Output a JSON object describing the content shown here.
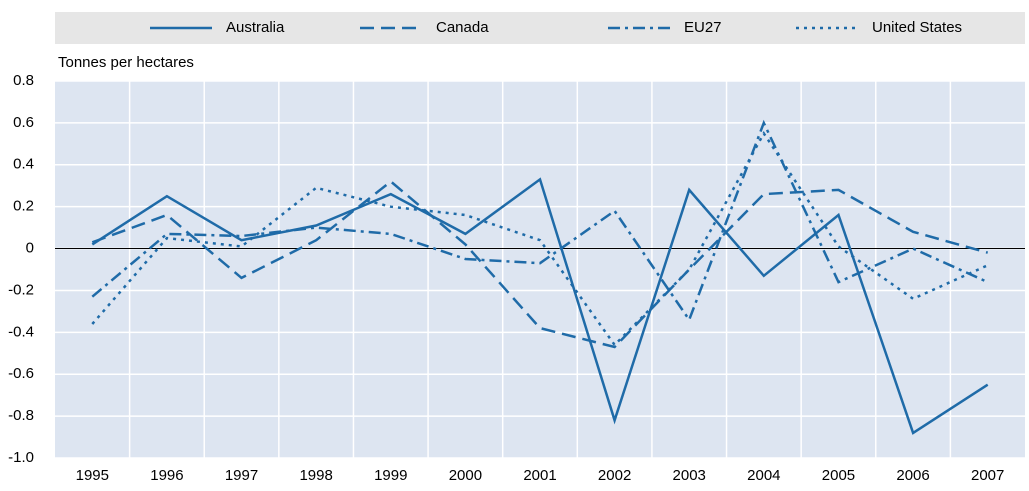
{
  "chart_data": {
    "type": "line",
    "y_axis_label": "Tonnes per hectares",
    "categories": [
      "1995",
      "1996",
      "1997",
      "1998",
      "1999",
      "2000",
      "2001",
      "2002",
      "2003",
      "2004",
      "2005",
      "2006",
      "2007"
    ],
    "series": [
      {
        "name": "Australia",
        "color": "#1f6ba8",
        "dash": "solid",
        "values": [
          0.02,
          0.25,
          0.04,
          0.11,
          0.26,
          0.07,
          0.33,
          -0.82,
          0.28,
          -0.13,
          0.16,
          -0.88,
          -0.65
        ]
      },
      {
        "name": "Canada",
        "color": "#1f6ba8",
        "dash": "dashed",
        "values": [
          0.03,
          0.16,
          -0.14,
          0.04,
          0.32,
          0.02,
          -0.38,
          -0.47,
          -0.1,
          0.26,
          0.28,
          0.08,
          -0.02
        ]
      },
      {
        "name": "EU27",
        "color": "#1f6ba8",
        "dash": "dashdot",
        "values": [
          -0.23,
          0.07,
          0.06,
          0.1,
          0.07,
          -0.05,
          -0.07,
          0.18,
          -0.34,
          0.6,
          -0.16,
          0.0,
          -0.16
        ]
      },
      {
        "name": "United States",
        "color": "#1f6ba8",
        "dash": "dotted",
        "values": [
          -0.36,
          0.05,
          0.01,
          0.29,
          0.2,
          0.16,
          0.04,
          -0.46,
          -0.1,
          0.55,
          0.01,
          -0.24,
          -0.08
        ]
      }
    ],
    "ylim": [
      -1,
      0.8
    ],
    "yticks": [
      0.8,
      0.6,
      0.4,
      0.2,
      0,
      -0.2,
      -0.4,
      -0.6,
      -0.8,
      {
        "value": -1,
        "label": "-1.0"
      }
    ],
    "grid": true,
    "legend": "top"
  }
}
